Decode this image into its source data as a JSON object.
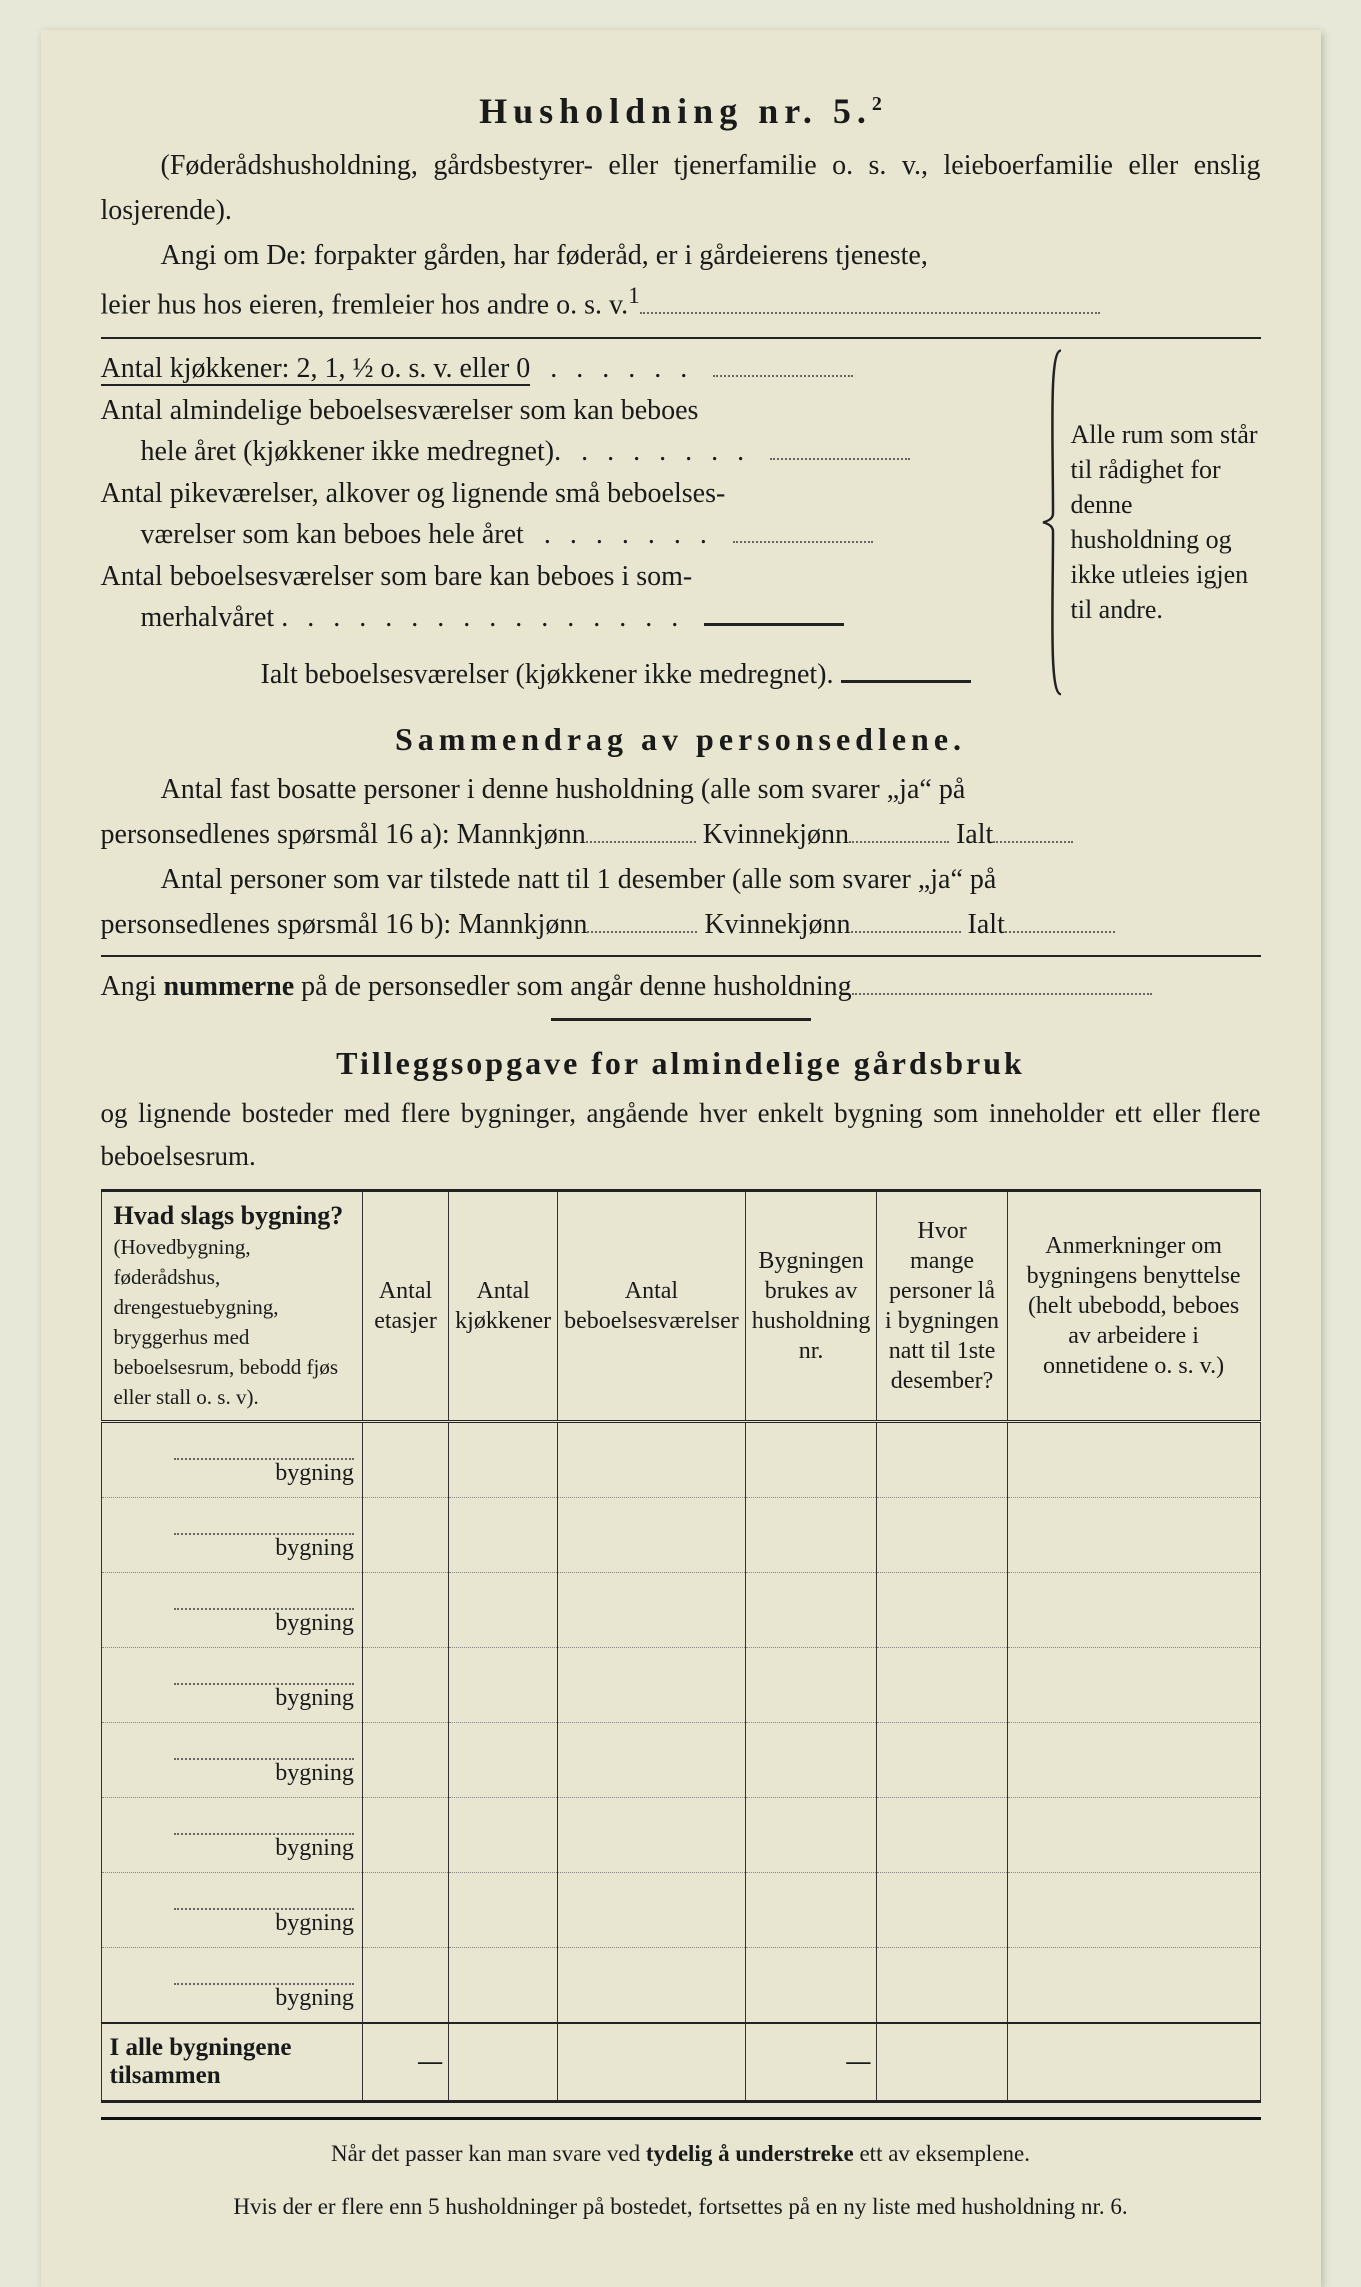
{
  "document": {
    "title": "Husholdning nr. 5.",
    "title_sup": "2",
    "intro_paren": "(Føderådshusholdning, gårdsbestyrer- eller tjenerfamilie o. s. v., leieboerfamilie eller enslig losjerende).",
    "intro_main1": "Angi om De:  forpakter gården, har føderåd, er i gårdeierens tjeneste,",
    "intro_main2": "leier hus hos eieren, fremleier hos andre o. s. v.",
    "intro_sup": "1",
    "kitchens_label": "Antal kjøkkener: 2, 1, ½ o. s. v. eller 0",
    "rooms_item1a": "Antal almindelige beboelsesværelser som kan beboes",
    "rooms_item1b": "hele året (kjøkkener ikke medregnet).",
    "rooms_item2a": "Antal pikeværelser, alkover og lignende små beboelses-",
    "rooms_item2b": "værelser som kan beboes hele året",
    "rooms_item3a": "Antal beboelsesværelser som bare kan beboes i som-",
    "rooms_item3b": "merhalvåret",
    "rooms_total": "Ialt beboelsesværelser  (kjøkkener ikke medregnet).",
    "rooms_side": "Alle rum som står til rådighet for denne husholdning og ikke utleies igjen til andre.",
    "summary_heading": "Sammendrag av personsedlene.",
    "summary_p1a": "Antal fast bosatte personer i denne husholdning (alle som svarer „ja“ på",
    "summary_p1b": "personsedlenes spørsmål 16 a): Mannkjønn",
    "summary_kv": "Kvinnekjønn",
    "summary_ialt": "Ialt",
    "summary_p2a": "Antal personer som var tilstede natt til 1 desember (alle som svarer „ja“ på",
    "summary_p2b": "personsedlenes spørsmål 16 b): Mannkjønn",
    "summary_p3a": "Angi ",
    "summary_p3b": "nummerne",
    "summary_p3c": " på de personsedler som angår denne husholdning",
    "tillegg_heading": "Tilleggsopgave for almindelige gårdsbruk",
    "tillegg_sub": "og lignende bosteder med flere bygninger, angående hver enkelt bygning som inneholder ett eller flere beboelsesrum.",
    "table": {
      "columns": [
        {
          "title": "Hvad slags bygning?",
          "sub": "(Hovedbygning, føderådshus, drengestuebygning, bryggerhus med beboelsesrum, bebodd fjøs eller stall o. s. v).",
          "width": "26%"
        },
        {
          "title": "Antal etasjer",
          "sub": "",
          "width": "8%"
        },
        {
          "title": "Antal kjøkkener",
          "sub": "",
          "width": "8%"
        },
        {
          "title": "Antal beboelsesværelser",
          "sub": "",
          "width": "9%"
        },
        {
          "title": "Bygningen brukes av husholdning nr.",
          "sub": "",
          "width": "10%"
        },
        {
          "title": "Hvor mange personer lå i bygningen natt til 1ste desember?",
          "sub": "",
          "width": "12%"
        },
        {
          "title": "Anmerkninger om bygningens benyttelse (helt ubebodd, beboes av arbeidere i onnetidene o. s. v.)",
          "sub": "",
          "width": "27%"
        }
      ],
      "row_label": "bygning",
      "num_rows": 8,
      "total_label": "I alle bygningene tilsammen",
      "dash": "—"
    },
    "footnote1a": "Når det passer kan man svare ved ",
    "footnote1b": "tydelig å understreke",
    "footnote1c": " ett av eksemplene.",
    "footnote2": "Hvis der er flere enn 5 husholdninger på bostedet, fortsettes på en ny liste med husholdning nr. 6."
  }
}
